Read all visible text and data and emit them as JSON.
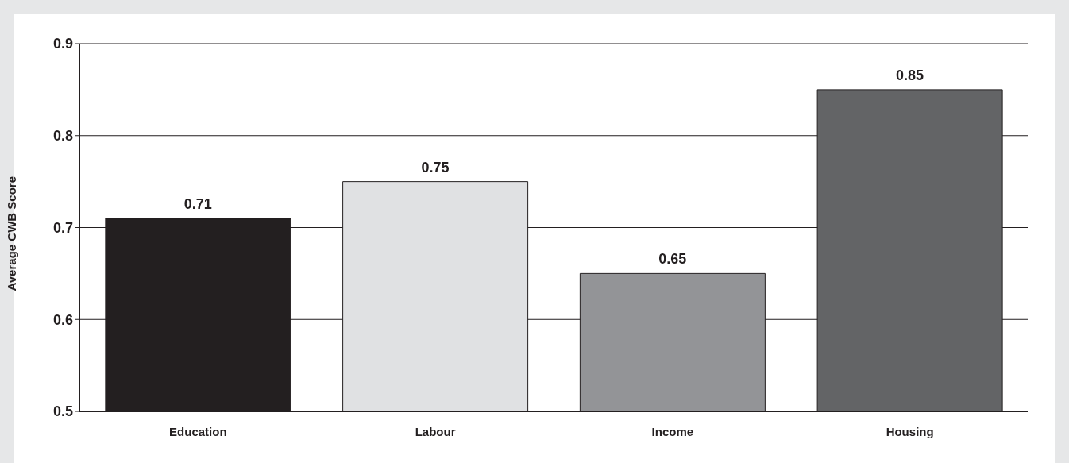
{
  "chart_data": {
    "type": "bar",
    "ylabel": "Average CWB Score",
    "categories": [
      "Education",
      "Labour",
      "Income",
      "Housing"
    ],
    "values": [
      0.71,
      0.75,
      0.65,
      0.85
    ],
    "colors": [
      "#231f20",
      "#e0e1e3",
      "#939497",
      "#636466"
    ],
    "ylim": [
      0.5,
      0.9
    ],
    "yticks": [
      0.5,
      0.6,
      0.7,
      0.8,
      0.9
    ],
    "grid": "y",
    "data_labels": true
  }
}
